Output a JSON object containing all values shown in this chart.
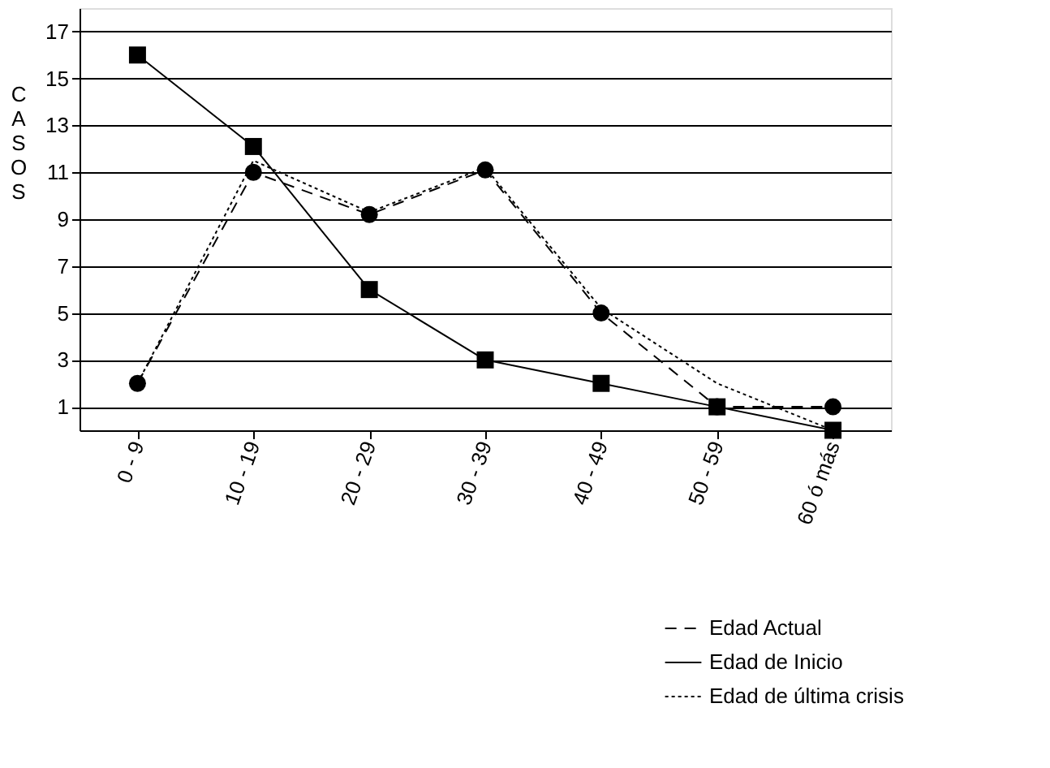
{
  "chart_data": {
    "type": "line",
    "ylabel": "CASOS",
    "categories": [
      "0 - 9",
      "10 - 19",
      "20 - 29",
      "30 - 39",
      "40 - 49",
      "50 - 59",
      "60 ó más"
    ],
    "ylim": [
      0,
      18
    ],
    "yticks": [
      1,
      3,
      5,
      7,
      9,
      11,
      13,
      15,
      17
    ],
    "grid": "y",
    "legend": "bottom right",
    "series": [
      {
        "name": "Edad Actual",
        "color": "#000000",
        "marker": "circle",
        "line_style": "dashed",
        "values": [
          2,
          11,
          9.2,
          11.1,
          5,
          1,
          1
        ]
      },
      {
        "name": "Edad de Inicio",
        "color": "#000000",
        "marker": "square",
        "line_style": "solid",
        "values": [
          16,
          12.1,
          6,
          3,
          2,
          1,
          0
        ]
      },
      {
        "name": "Edad de última crisis",
        "color": "#000000",
        "marker": "none",
        "line_style": "dotted",
        "values": [
          2,
          11.5,
          9.3,
          11.2,
          5.2,
          2,
          0
        ]
      }
    ]
  }
}
